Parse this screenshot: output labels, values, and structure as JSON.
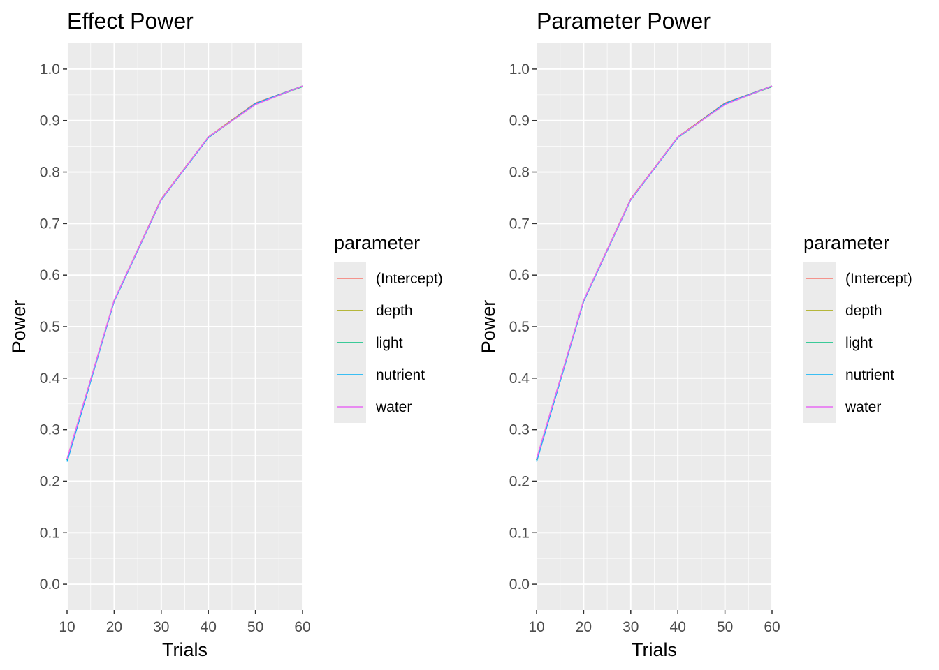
{
  "chart_data": [
    {
      "type": "line",
      "title": "Effect Power",
      "xlabel": "Trials",
      "ylabel": "Power",
      "x": [
        10,
        20,
        30,
        40,
        50,
        60
      ],
      "xlim": [
        10,
        60
      ],
      "ylim": [
        -0.05,
        1.05
      ],
      "x_ticks": [
        "10",
        "20",
        "30",
        "40",
        "50",
        "60"
      ],
      "y_ticks": [
        "0.0",
        "0.1",
        "0.2",
        "0.3",
        "0.4",
        "0.5",
        "0.6",
        "0.7",
        "0.8",
        "0.9",
        "1.0"
      ],
      "grid": true,
      "legend": {
        "title": "parameter",
        "placement": "right"
      },
      "series": [
        {
          "name": "(Intercept)",
          "color": "#F8766D",
          "values": [
            0.243,
            0.551,
            0.748,
            0.868,
            0.934,
            0.967
          ]
        },
        {
          "name": "depth",
          "color": "#A3A500",
          "values": [
            0.242,
            0.55,
            0.747,
            0.868,
            0.933,
            0.967
          ]
        },
        {
          "name": "light",
          "color": "#00BF7D",
          "values": [
            0.241,
            0.55,
            0.747,
            0.867,
            0.932,
            0.966
          ]
        },
        {
          "name": "nutrient",
          "color": "#00B0F6",
          "values": [
            0.238,
            0.549,
            0.746,
            0.867,
            0.933,
            0.967
          ]
        },
        {
          "name": "water",
          "color": "#E76BF3",
          "values": [
            0.243,
            0.551,
            0.747,
            0.868,
            0.931,
            0.967
          ]
        }
      ]
    },
    {
      "type": "line",
      "title": "Parameter Power",
      "xlabel": "Trials",
      "ylabel": "Power",
      "x": [
        10,
        20,
        30,
        40,
        50,
        60
      ],
      "xlim": [
        10,
        60
      ],
      "ylim": [
        -0.05,
        1.05
      ],
      "x_ticks": [
        "10",
        "20",
        "30",
        "40",
        "50",
        "60"
      ],
      "y_ticks": [
        "0.0",
        "0.1",
        "0.2",
        "0.3",
        "0.4",
        "0.5",
        "0.6",
        "0.7",
        "0.8",
        "0.9",
        "1.0"
      ],
      "grid": true,
      "legend": {
        "title": "parameter",
        "placement": "right"
      },
      "series": [
        {
          "name": "(Intercept)",
          "color": "#F8766D",
          "values": [
            0.243,
            0.551,
            0.748,
            0.868,
            0.934,
            0.967
          ]
        },
        {
          "name": "depth",
          "color": "#A3A500",
          "values": [
            0.242,
            0.55,
            0.747,
            0.868,
            0.933,
            0.967
          ]
        },
        {
          "name": "light",
          "color": "#00BF7D",
          "values": [
            0.241,
            0.55,
            0.747,
            0.867,
            0.932,
            0.966
          ]
        },
        {
          "name": "nutrient",
          "color": "#00B0F6",
          "values": [
            0.238,
            0.549,
            0.746,
            0.867,
            0.933,
            0.967
          ]
        },
        {
          "name": "water",
          "color": "#E76BF3",
          "values": [
            0.243,
            0.551,
            0.747,
            0.868,
            0.931,
            0.967
          ]
        }
      ]
    }
  ]
}
